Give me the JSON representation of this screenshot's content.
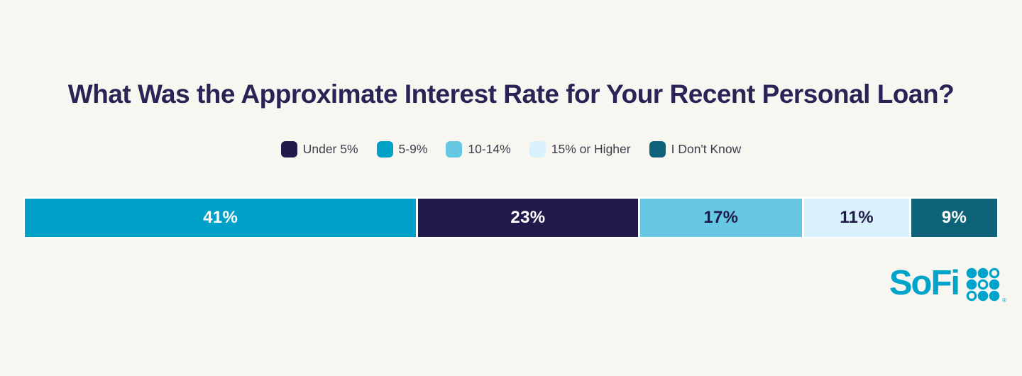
{
  "chart_data": {
    "type": "bar",
    "variant": "horizontal-stacked-single-bar",
    "title": "What Was the Approximate Interest Rate for Your Recent Personal Loan?",
    "legend_position": "top-center",
    "grid": false,
    "categories": [
      "Under 5%",
      "5-9%",
      "10-14%",
      "15% or Higher",
      "I Don't Know"
    ],
    "legend": [
      {
        "label": "Under 5%",
        "color": "#221A4A"
      },
      {
        "label": "5-9%",
        "color": "#00A1C9"
      },
      {
        "label": "10-14%",
        "color": "#66C8E2"
      },
      {
        "label": "15% or Higher",
        "color": "#D9F1FA"
      },
      {
        "label": "I Don't Know",
        "color": "#0D6179"
      }
    ],
    "segments": [
      {
        "label": "5-9%",
        "value": 41,
        "display": "41%",
        "color": "#00A1C9",
        "text_color": "#FFFFFF"
      },
      {
        "label": "Under 5%",
        "value": 23,
        "display": "23%",
        "color": "#221A4A",
        "text_color": "#FFFFFF"
      },
      {
        "label": "10-14%",
        "value": 17,
        "display": "17%",
        "color": "#66C8E2",
        "text_color": "#221A4A"
      },
      {
        "label": "15% or Higher",
        "value": 11,
        "display": "11%",
        "color": "#D9F1FA",
        "text_color": "#221A4A"
      },
      {
        "label": "I Don't Know",
        "value": 9,
        "display": "9%",
        "color": "#0D6179",
        "text_color": "#FFFFFF"
      }
    ]
  },
  "branding": {
    "logo_text": "SoFi",
    "logo_color": "#00A3C9",
    "registered_mark": "®",
    "logo_dots_pattern": [
      [
        "filled",
        "filled",
        "outline"
      ],
      [
        "filled",
        "outline",
        "filled"
      ],
      [
        "outline",
        "filled",
        "filled"
      ]
    ]
  },
  "colors": {
    "background": "#F8F6F1",
    "title_text": "#2B2355",
    "legend_text": "#3D3D4C",
    "separator": "#FFFFFF"
  }
}
